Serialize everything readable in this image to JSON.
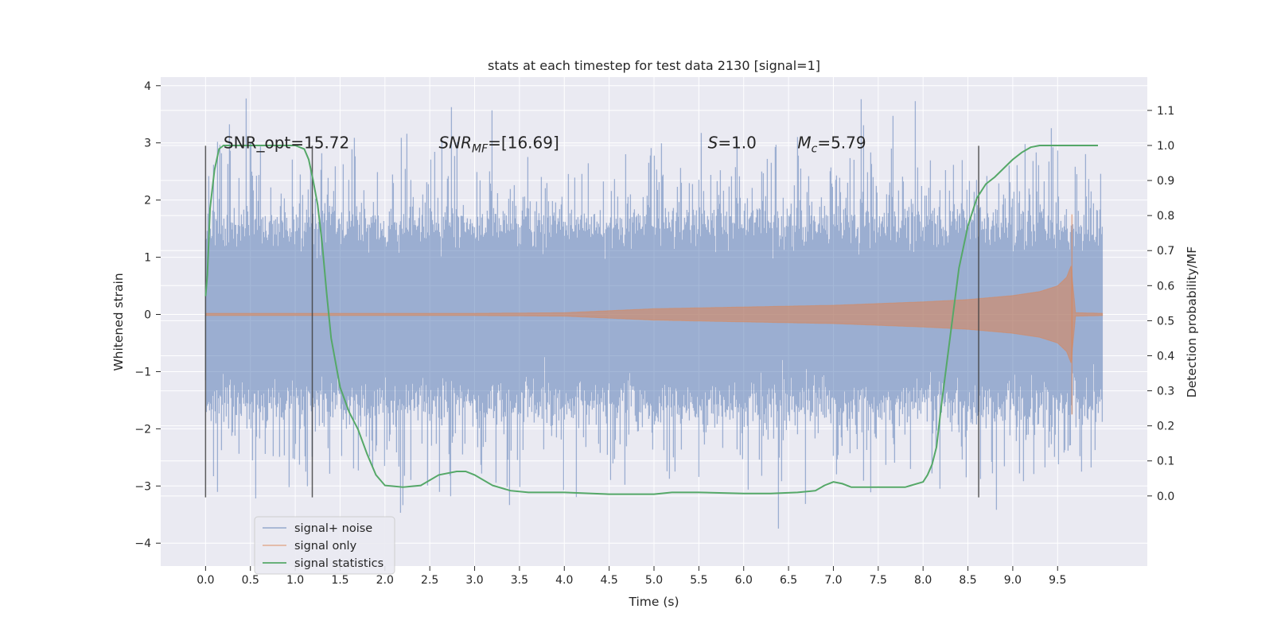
{
  "chart_data": {
    "type": "line",
    "title": "stats at each timestep for test data 2130 [signal=1]",
    "xlabel": "Time (s)",
    "ylabel": "Whitened strain",
    "ylabel_right": "Detection probability/MF",
    "xlim": [
      -0.5,
      10.5
    ],
    "ylim": [
      -4.4,
      4.15
    ],
    "ylim_right": [
      -0.2,
      1.195
    ],
    "x_ticks": [
      "0.0",
      "0.5",
      "1.0",
      "1.5",
      "2.0",
      "2.5",
      "3.0",
      "3.5",
      "4.0",
      "4.5",
      "5.0",
      "5.5",
      "6.0",
      "6.5",
      "7.0",
      "7.5",
      "8.0",
      "8.5",
      "9.0",
      "9.5"
    ],
    "y_ticks": [
      "−4",
      "−3",
      "−2",
      "−1",
      "0",
      "1",
      "2",
      "3",
      "4"
    ],
    "y_right_ticks": [
      "0.0",
      "0.1",
      "0.2",
      "0.3",
      "0.4",
      "0.5",
      "0.6",
      "0.7",
      "0.8",
      "0.9",
      "1.0",
      "1.1"
    ],
    "grid": true,
    "legend_position": "lower-left",
    "series": [
      {
        "name": "signal+ noise",
        "color": "#4c72b0",
        "axis": "left",
        "envelope": {
          "x": [
            0,
            10
          ],
          "typical_amplitude": 1.6,
          "peak_min": -4.05,
          "peak_max": 3.8
        }
      },
      {
        "name": "signal only",
        "color": "#dd8452",
        "axis": "left",
        "chirp": {
          "x": [
            0,
            1,
            2,
            3,
            4,
            5,
            6,
            7,
            8,
            8.5,
            9,
            9.3,
            9.5,
            9.6,
            9.65,
            9.7,
            10
          ],
          "amplitude": [
            0.02,
            0.02,
            0.02,
            0.02,
            0.03,
            0.1,
            0.13,
            0.16,
            0.22,
            0.26,
            0.33,
            0.4,
            0.5,
            0.65,
            0.85,
            0.03,
            0.02
          ]
        }
      },
      {
        "name": "signal statistics",
        "color": "#55a868",
        "axis": "right",
        "x": [
          0,
          0.02,
          0.05,
          0.1,
          0.15,
          0.2,
          0.3,
          0.5,
          0.7,
          0.9,
          1.0,
          1.1,
          1.15,
          1.2,
          1.25,
          1.3,
          1.35,
          1.4,
          1.5,
          1.6,
          1.7,
          1.8,
          1.9,
          2.0,
          2.2,
          2.4,
          2.6,
          2.8,
          2.9,
          3.0,
          3.2,
          3.4,
          3.6,
          3.8,
          4.0,
          4.5,
          5.0,
          5.2,
          5.5,
          6.0,
          6.3,
          6.6,
          6.8,
          6.9,
          7.0,
          7.1,
          7.2,
          7.5,
          7.8,
          8.0,
          8.05,
          8.1,
          8.15,
          8.2,
          8.3,
          8.4,
          8.5,
          8.6,
          8.7,
          8.8,
          9.0,
          9.1,
          9.2,
          9.3,
          9.5,
          9.7,
          9.95
        ],
        "y": [
          0.57,
          0.63,
          0.82,
          0.93,
          0.99,
          1.0,
          1.0,
          1.0,
          1.0,
          1.0,
          1.0,
          0.99,
          0.96,
          0.9,
          0.83,
          0.72,
          0.58,
          0.45,
          0.31,
          0.24,
          0.19,
          0.12,
          0.06,
          0.03,
          0.025,
          0.03,
          0.06,
          0.07,
          0.07,
          0.06,
          0.03,
          0.015,
          0.01,
          0.01,
          0.01,
          0.005,
          0.005,
          0.01,
          0.01,
          0.007,
          0.007,
          0.01,
          0.015,
          0.03,
          0.04,
          0.035,
          0.025,
          0.025,
          0.025,
          0.04,
          0.06,
          0.09,
          0.14,
          0.25,
          0.45,
          0.65,
          0.77,
          0.85,
          0.89,
          0.91,
          0.96,
          0.98,
          0.995,
          1.0,
          1.0,
          1.0,
          1.0
        ]
      }
    ],
    "vertical_lines": [
      {
        "x": 0.0,
        "y_from": -3.2,
        "y_to": 2.95
      },
      {
        "x": 1.19,
        "y_from": -3.2,
        "y_to": 2.95
      },
      {
        "x": 8.62,
        "y_from": -3.2,
        "y_to": 2.95
      }
    ],
    "annotations": [
      {
        "key": "snr_opt",
        "x": 0.2,
        "y": 3.0,
        "text": "SNR_opt=15.72"
      },
      {
        "key": "snr_mf",
        "x": 2.6,
        "y": 3.0,
        "italic": "SNR",
        "sub": "MF",
        "rest": "=[16.69]"
      },
      {
        "key": "s",
        "x": 5.6,
        "y": 3.0,
        "italic": "S",
        "rest": "=1.0"
      },
      {
        "key": "mc",
        "x": 6.6,
        "y": 3.0,
        "italic": "M",
        "sub": "c",
        "rest": "=5.79"
      }
    ]
  }
}
